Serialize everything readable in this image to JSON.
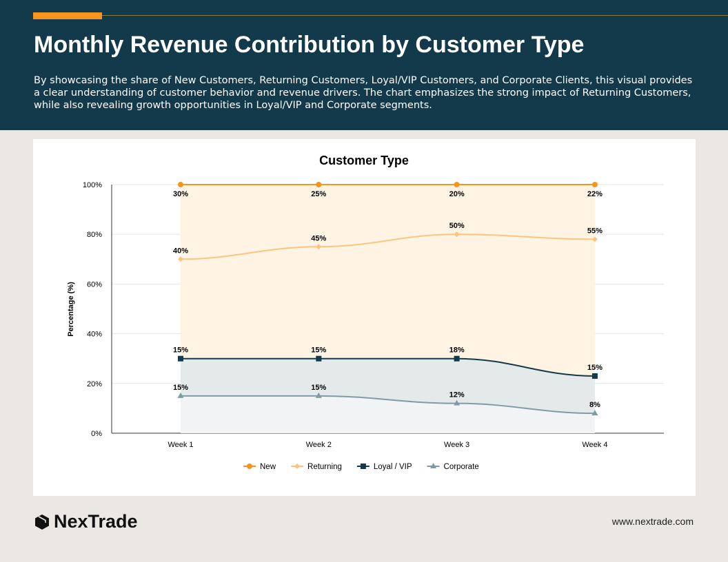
{
  "header": {
    "title": "Monthly Revenue Contribution by Customer Type",
    "description": "By showcasing the share of New Customers, Returning Customers, Loyal/VIP Customers, and Corporate Clients, this visual provides a clear understanding of customer behavior and revenue drivers. The chart emphasizes the strong impact of Returning Customers, while also revealing growth opportunities in Loyal/VIP and Corporate segments."
  },
  "footer": {
    "brand": "NexTrade",
    "url": "www.nextrade.com"
  },
  "chart_data": {
    "type": "area",
    "stacked": "percent",
    "title": "Customer Type",
    "xlabel": "",
    "ylabel": "Percentage (%)",
    "categories": [
      "Week 1",
      "Week 2",
      "Week 3",
      "Week 4"
    ],
    "ylim": [
      0,
      100
    ],
    "yticks": [
      "0%",
      "20%",
      "40%",
      "60%",
      "80%",
      "100%"
    ],
    "grid": true,
    "legend": "bottom",
    "series": [
      {
        "name": "New",
        "values": [
          30,
          25,
          20,
          22
        ],
        "color": "#f7941d",
        "marker": "circle"
      },
      {
        "name": "Returning",
        "values": [
          40,
          45,
          50,
          55
        ],
        "color": "#fbc57f",
        "marker": "diamond"
      },
      {
        "name": "Loyal / VIP",
        "values": [
          15,
          15,
          18,
          15
        ],
        "color": "#123a4a",
        "marker": "square"
      },
      {
        "name": "Corporate",
        "values": [
          15,
          15,
          12,
          8
        ],
        "color": "#7f9ba5",
        "marker": "triangle"
      }
    ]
  }
}
